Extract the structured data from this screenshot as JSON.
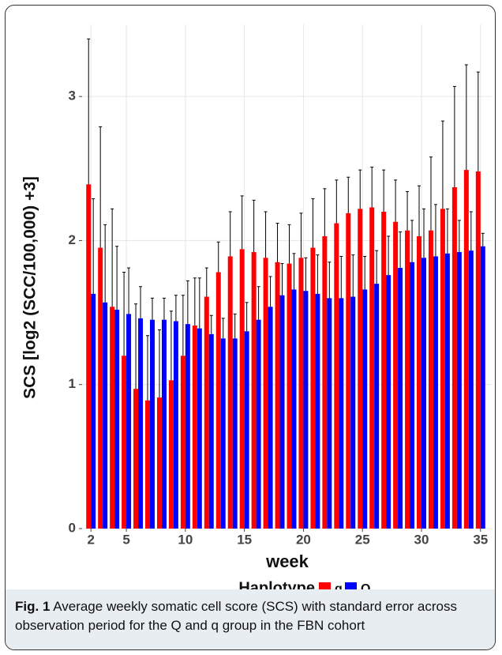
{
  "chart_data": {
    "type": "bar",
    "x_label": "week",
    "y_label": "SCS [log2 (SCC/100,000) +3]",
    "legend_title": "Haplotype",
    "x": [
      2,
      3,
      4,
      5,
      6,
      7,
      8,
      9,
      10,
      11,
      12,
      13,
      14,
      15,
      16,
      17,
      18,
      19,
      20,
      21,
      22,
      23,
      24,
      25,
      26,
      27,
      28,
      29,
      30,
      31,
      32,
      33,
      34,
      35
    ],
    "series": [
      {
        "name": "q",
        "color": "#ff0000",
        "values": [
          2.39,
          1.95,
          1.54,
          1.2,
          0.97,
          0.89,
          0.91,
          1.03,
          1.2,
          1.41,
          1.61,
          1.78,
          1.89,
          1.94,
          1.92,
          1.88,
          1.85,
          1.84,
          1.88,
          1.95,
          2.03,
          2.12,
          2.19,
          2.22,
          2.23,
          2.2,
          2.13,
          2.07,
          2.03,
          2.07,
          2.22,
          2.37,
          2.49,
          2.48
        ],
        "errors": [
          1.01,
          0.84,
          0.68,
          0.58,
          0.59,
          0.45,
          0.47,
          0.48,
          0.42,
          0.33,
          0.2,
          0.21,
          0.31,
          0.37,
          0.36,
          0.32,
          0.27,
          0.27,
          0.31,
          0.34,
          0.33,
          0.3,
          0.25,
          0.27,
          0.28,
          0.29,
          0.29,
          0.27,
          0.35,
          0.51,
          0.61,
          0.7,
          0.73,
          0.69
        ]
      },
      {
        "name": "Q",
        "color": "#0000ff",
        "values": [
          1.63,
          1.57,
          1.52,
          1.49,
          1.46,
          1.45,
          1.45,
          1.44,
          1.42,
          1.39,
          1.35,
          1.32,
          1.32,
          1.37,
          1.45,
          1.54,
          1.62,
          1.66,
          1.65,
          1.63,
          1.6,
          1.6,
          1.61,
          1.66,
          1.7,
          1.76,
          1.81,
          1.85,
          1.88,
          1.89,
          1.91,
          1.92,
          1.93,
          1.96
        ],
        "errors": [
          0.66,
          0.54,
          0.44,
          0.32,
          0.22,
          0.15,
          0.15,
          0.18,
          0.3,
          0.35,
          0.13,
          0.14,
          0.17,
          0.2,
          0.23,
          0.21,
          0.22,
          0.25,
          0.23,
          0.27,
          0.25,
          0.29,
          0.29,
          0.23,
          0.23,
          0.27,
          0.25,
          0.29,
          0.34,
          0.36,
          0.31,
          0.22,
          0.27,
          0.09
        ]
      }
    ],
    "xlim": [
      1.25,
      35.95
    ],
    "xticks": [
      2,
      5,
      10,
      15,
      20,
      25,
      30,
      35
    ],
    "ylim": [
      0,
      3.5
    ],
    "yticks": [
      0,
      1,
      2,
      3
    ],
    "grid": true,
    "legend_position": "bottom"
  },
  "caption": {
    "label": "Fig. 1",
    "text": "Average weekly somatic cell score (SCS) with standard error across observation period for the Q and q group in the FBN cohort"
  }
}
